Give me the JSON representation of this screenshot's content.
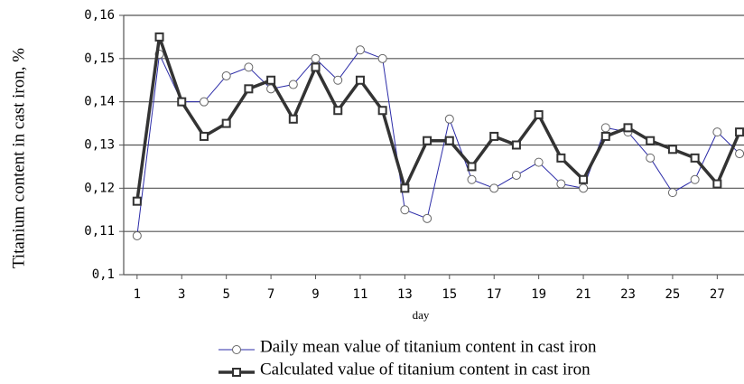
{
  "chart_data": {
    "type": "line",
    "x_label": "day",
    "y_label": "Titanium content in cast iron, %",
    "x": [
      1,
      2,
      3,
      4,
      5,
      6,
      7,
      8,
      9,
      10,
      11,
      12,
      13,
      14,
      15,
      16,
      17,
      18,
      19,
      20,
      21,
      22,
      23,
      24,
      25,
      26,
      27,
      28
    ],
    "xlim": [
      0.4,
      28.2
    ],
    "xticks": [
      1,
      3,
      5,
      7,
      9,
      11,
      13,
      15,
      17,
      19,
      21,
      23,
      25,
      27
    ],
    "ylim": [
      0.1,
      0.16
    ],
    "yticks": [
      {
        "value": 0.1,
        "label": "0,1"
      },
      {
        "value": 0.11,
        "label": "0,11"
      },
      {
        "value": 0.12,
        "label": "0,12"
      },
      {
        "value": 0.13,
        "label": "0,13"
      },
      {
        "value": 0.14,
        "label": "0,14"
      },
      {
        "value": 0.15,
        "label": "0,15"
      },
      {
        "value": 0.16,
        "label": "0,16"
      }
    ],
    "grid": true,
    "legend": "bottom",
    "series": [
      {
        "name": "Daily mean value of titanium content in cast iron",
        "color": "#2b2ba8",
        "marker": "circle",
        "values": [
          0.109,
          0.151,
          0.14,
          0.14,
          0.146,
          0.148,
          0.143,
          0.144,
          0.15,
          0.145,
          0.152,
          0.15,
          0.115,
          0.113,
          0.136,
          0.122,
          0.12,
          0.123,
          0.126,
          0.121,
          0.12,
          0.134,
          0.133,
          0.127,
          0.119,
          0.122,
          0.133,
          0.128
        ]
      },
      {
        "name": "Calculated value of titanium content in cast iron",
        "color": "#333333",
        "marker": "square",
        "values": [
          0.117,
          0.155,
          0.14,
          0.132,
          0.135,
          0.143,
          0.145,
          0.136,
          0.148,
          0.138,
          0.145,
          0.138,
          0.12,
          0.131,
          0.131,
          0.125,
          0.132,
          0.13,
          0.137,
          0.127,
          0.122,
          0.132,
          0.134,
          0.131,
          0.129,
          0.127,
          0.121,
          0.133
        ]
      }
    ]
  }
}
